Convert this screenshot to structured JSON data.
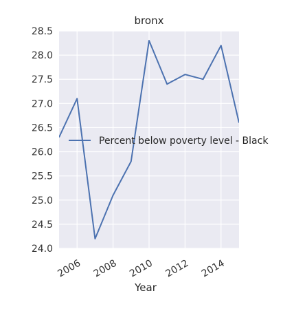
{
  "chart_data": {
    "type": "line",
    "title": "bronx",
    "xlabel": "Year",
    "ylabel": "",
    "x": [
      2005,
      2006,
      2007,
      2008,
      2009,
      2010,
      2011,
      2012,
      2013,
      2014,
      2015
    ],
    "series": [
      {
        "name": "Percent below poverty level - Black",
        "values": [
          26.3,
          27.1,
          24.2,
          25.1,
          25.8,
          28.3,
          27.4,
          27.6,
          27.5,
          28.2,
          26.6
        ],
        "color": "#4c72b0"
      }
    ],
    "xlim": [
      2005,
      2015
    ],
    "ylim": [
      24.0,
      28.5
    ],
    "x_ticks": [
      "2006",
      "2008",
      "2010",
      "2012",
      "2014"
    ],
    "y_ticks": [
      "24.0",
      "24.5",
      "25.0",
      "25.5",
      "26.0",
      "26.5",
      "27.0",
      "27.5",
      "28.0",
      "28.5"
    ],
    "grid": true,
    "legend_position": "center-right",
    "plot_background": "#eaeaf2",
    "grid_color": "#ffffff"
  }
}
